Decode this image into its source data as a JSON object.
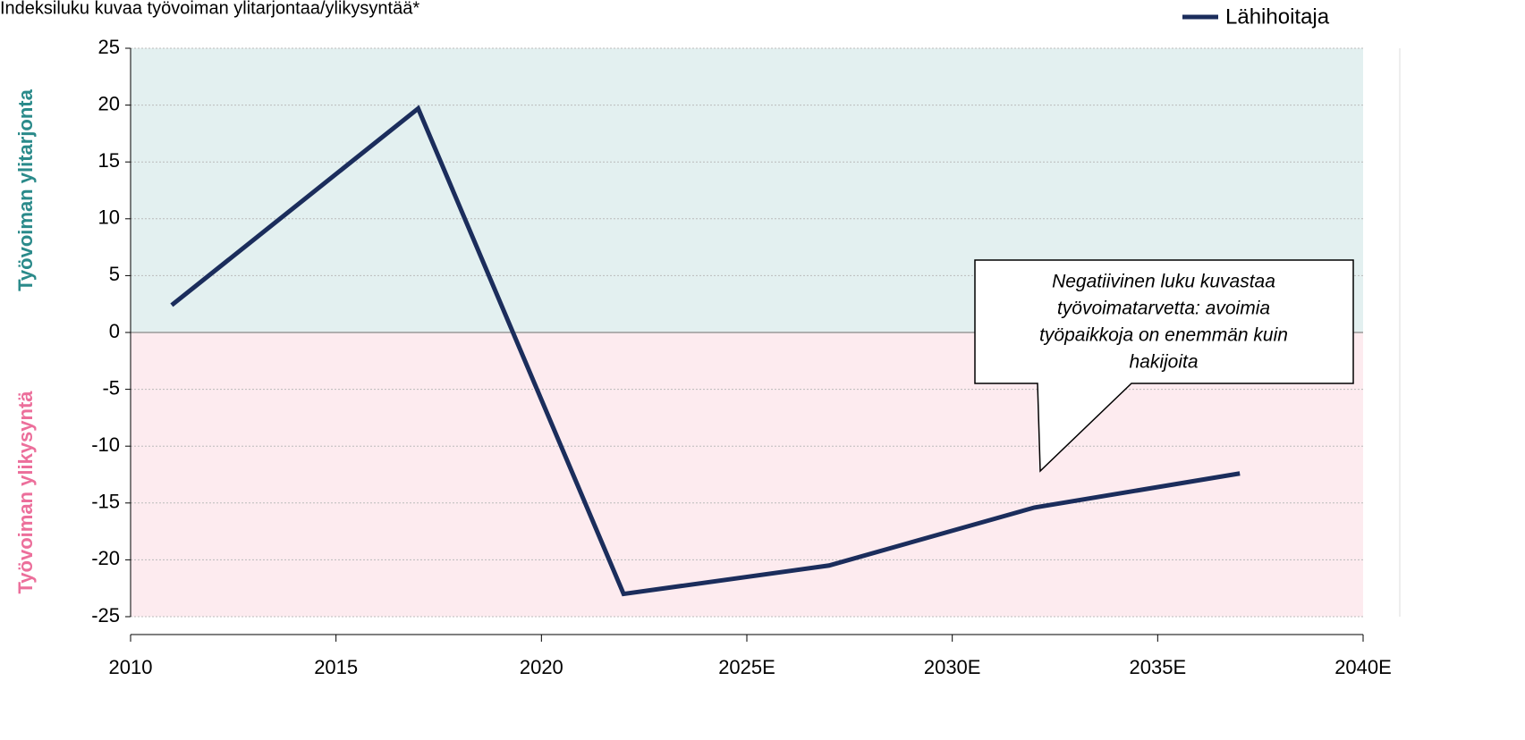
{
  "chart_data": {
    "type": "line",
    "title": "Indeksiluku kuvaa työvoiman ylitarjontaa/ylikysyntää*",
    "upper_label": "Työvoiman ylitarjonta",
    "lower_label": "Työvoiman ylikysyntä",
    "upper_color": "#e3f0f0",
    "lower_color": "#fdebef",
    "upper_label_color": "#2a8a8a",
    "lower_label_color": "#ec6f9b",
    "annotation": [
      "Negatiivinen luku kuvastaa",
      "työvoimatarvetta: avoimia",
      "työpaikkoja on enemmän kuin",
      "hakijoita"
    ],
    "x": [
      2011,
      2017,
      2022,
      2027,
      2032,
      2037
    ],
    "series": [
      {
        "name": "Lähihoitaja",
        "color": "#1b2d5c",
        "values": [
          2.4,
          19.7,
          -23.0,
          -20.5,
          -15.4,
          -12.4
        ]
      }
    ],
    "xlim": [
      2010,
      2040
    ],
    "xticks": [
      2010,
      2015,
      2020,
      {
        "value": 2025,
        "label": "2025E"
      },
      {
        "value": 2030,
        "label": "2030E"
      },
      {
        "value": 2035,
        "label": "2035E"
      },
      {
        "value": 2040,
        "label": "2040E"
      }
    ],
    "ylim": [
      -25,
      25
    ],
    "yticks": [
      -25,
      -20,
      -15,
      -10,
      -5,
      0,
      5,
      10,
      15,
      20,
      25
    ],
    "grid": true,
    "legend": "top-right"
  }
}
